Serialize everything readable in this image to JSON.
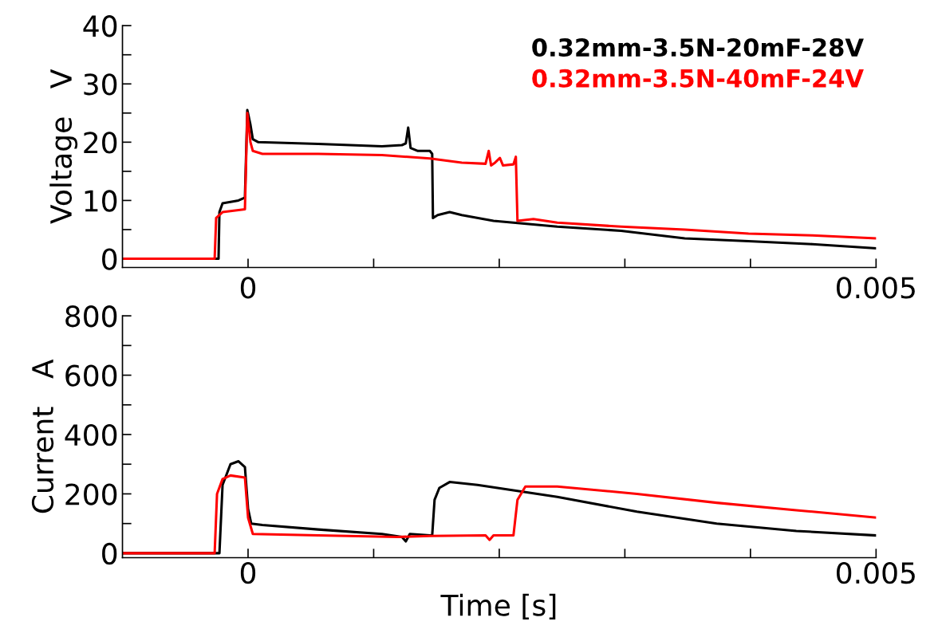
{
  "chart_data": [
    {
      "type": "line",
      "ylabel": "Voltage   V",
      "legend": "top right",
      "grid": false,
      "tick_labels": "y",
      "xlim": [
        -0.001,
        0.005
      ],
      "xticks": [
        {
          "value": 0,
          "label": "0"
        },
        {
          "value": 0.001,
          "label": null
        },
        {
          "value": 0.002,
          "label": null
        },
        {
          "value": 0.003,
          "label": null
        },
        {
          "value": 0.004,
          "label": null
        },
        {
          "value": 0.005,
          "label": "0.005"
        }
      ],
      "ylim": [
        -1.5,
        40
      ],
      "yticks": [
        0,
        {
          "value": 5,
          "label": null
        },
        10,
        {
          "value": 15,
          "label": null
        },
        20,
        {
          "value": 25,
          "label": null
        },
        30,
        {
          "value": 35,
          "label": null
        },
        40
      ],
      "series": [
        {
          "name": "0.32mm-3.5N-20mF-28V",
          "color": "#000000",
          "x": [
            -0.001,
            -0.000266,
            -0.000235,
            -0.000228,
            -0.000203,
            -7.6e-05,
            -2.5e-05,
            -6e-06,
            1.9e-05,
            3.8e-05,
            8.2e-05,
            0.000558,
            0.001066,
            0.001225,
            0.001256,
            0.001275,
            0.001294,
            0.001352,
            0.001447,
            0.001466,
            0.001472,
            0.00151,
            0.001605,
            0.001701,
            0.001954,
            0.002462,
            0.00297,
            0.003477,
            0.003985,
            0.004492,
            0.005
          ],
          "values": [
            0,
            0,
            0,
            8,
            9.5,
            10,
            10.5,
            25.5,
            23,
            20.5,
            20,
            19.7,
            19.3,
            19.5,
            19.8,
            22.5,
            19,
            18.5,
            18.5,
            18,
            7,
            7.5,
            8,
            7.5,
            6.5,
            5.5,
            4.8,
            3.5,
            3,
            2.5,
            1.8
          ]
        },
        {
          "name": "0.32mm-3.5N-40mF-24V",
          "color": "#ff0000",
          "x": [
            -0.001,
            -0.000266,
            -0.000254,
            -0.000203,
            -2.5e-05,
            -6e-06,
            1.9e-05,
            3.8e-05,
            0.000114,
            0.000558,
            0.001066,
            0.001447,
            0.001701,
            0.001891,
            0.001916,
            0.001935,
            0.001967,
            0.002005,
            0.00203,
            0.002113,
            0.002132,
            0.002145,
            0.002272,
            0.002462,
            0.00297,
            0.003477,
            0.003985,
            0.004492,
            0.005
          ],
          "values": [
            0,
            0,
            7,
            8,
            8.5,
            25,
            20,
            18.5,
            18,
            18,
            17.8,
            17.2,
            16.5,
            16.3,
            18.5,
            16,
            16.5,
            17.3,
            16,
            16.2,
            17.5,
            6.5,
            6.8,
            6.2,
            5.5,
            5,
            4.3,
            4,
            3.5
          ]
        }
      ]
    },
    {
      "type": "line",
      "ylabel": "Current   A",
      "xlabel": "Time [s]",
      "grid": false,
      "legend": false,
      "xlim": [
        -0.001,
        0.005
      ],
      "xticks": [
        {
          "value": 0,
          "label": "0"
        },
        {
          "value": 0.001,
          "label": null
        },
        {
          "value": 0.002,
          "label": null
        },
        {
          "value": 0.003,
          "label": null
        },
        {
          "value": 0.004,
          "label": null
        },
        {
          "value": 0.005,
          "label": "0.005"
        }
      ],
      "ylim": [
        -15,
        800
      ],
      "yticks": [
        0,
        {
          "value": 100,
          "label": null
        },
        200,
        {
          "value": 300,
          "label": null
        },
        400,
        {
          "value": 500,
          "label": null
        },
        600,
        {
          "value": 700,
          "label": null
        },
        800
      ],
      "series": [
        {
          "color": "#000000",
          "x": [
            -0.001,
            -0.000254,
            -0.000228,
            -0.000203,
            -0.00014,
            -7.6e-05,
            -2.5e-05,
            0,
            2.5e-05,
            0.000114,
            0.000558,
            0.001066,
            0.001225,
            0.001256,
            0.001288,
            0.001447,
            0.001466,
            0.001485,
            0.001523,
            0.001605,
            0.001827,
            0.002462,
            0.003096,
            0.003731,
            0.004365,
            0.005
          ],
          "values": [
            0,
            0,
            0,
            230,
            300,
            310,
            290,
            150,
            100,
            95,
            80,
            65,
            55,
            40,
            65,
            60,
            60,
            180,
            220,
            240,
            230,
            190,
            140,
            100,
            75,
            60
          ]
        },
        {
          "color": "#ff0000",
          "x": [
            -0.001,
            -0.000266,
            -0.000247,
            -0.000203,
            -0.00014,
            -2.5e-05,
            0,
            3.8e-05,
            0.000558,
            0.001193,
            0.001447,
            0.001891,
            0.001923,
            0.001954,
            0.002113,
            0.002145,
            0.002208,
            0.002462,
            0.003096,
            0.003731,
            0.004365,
            0.005
          ],
          "values": [
            0,
            0,
            200,
            250,
            262,
            255,
            120,
            65,
            60,
            55,
            58,
            60,
            45,
            60,
            60,
            180,
            225,
            225,
            200,
            170,
            145,
            120
          ]
        }
      ]
    }
  ]
}
